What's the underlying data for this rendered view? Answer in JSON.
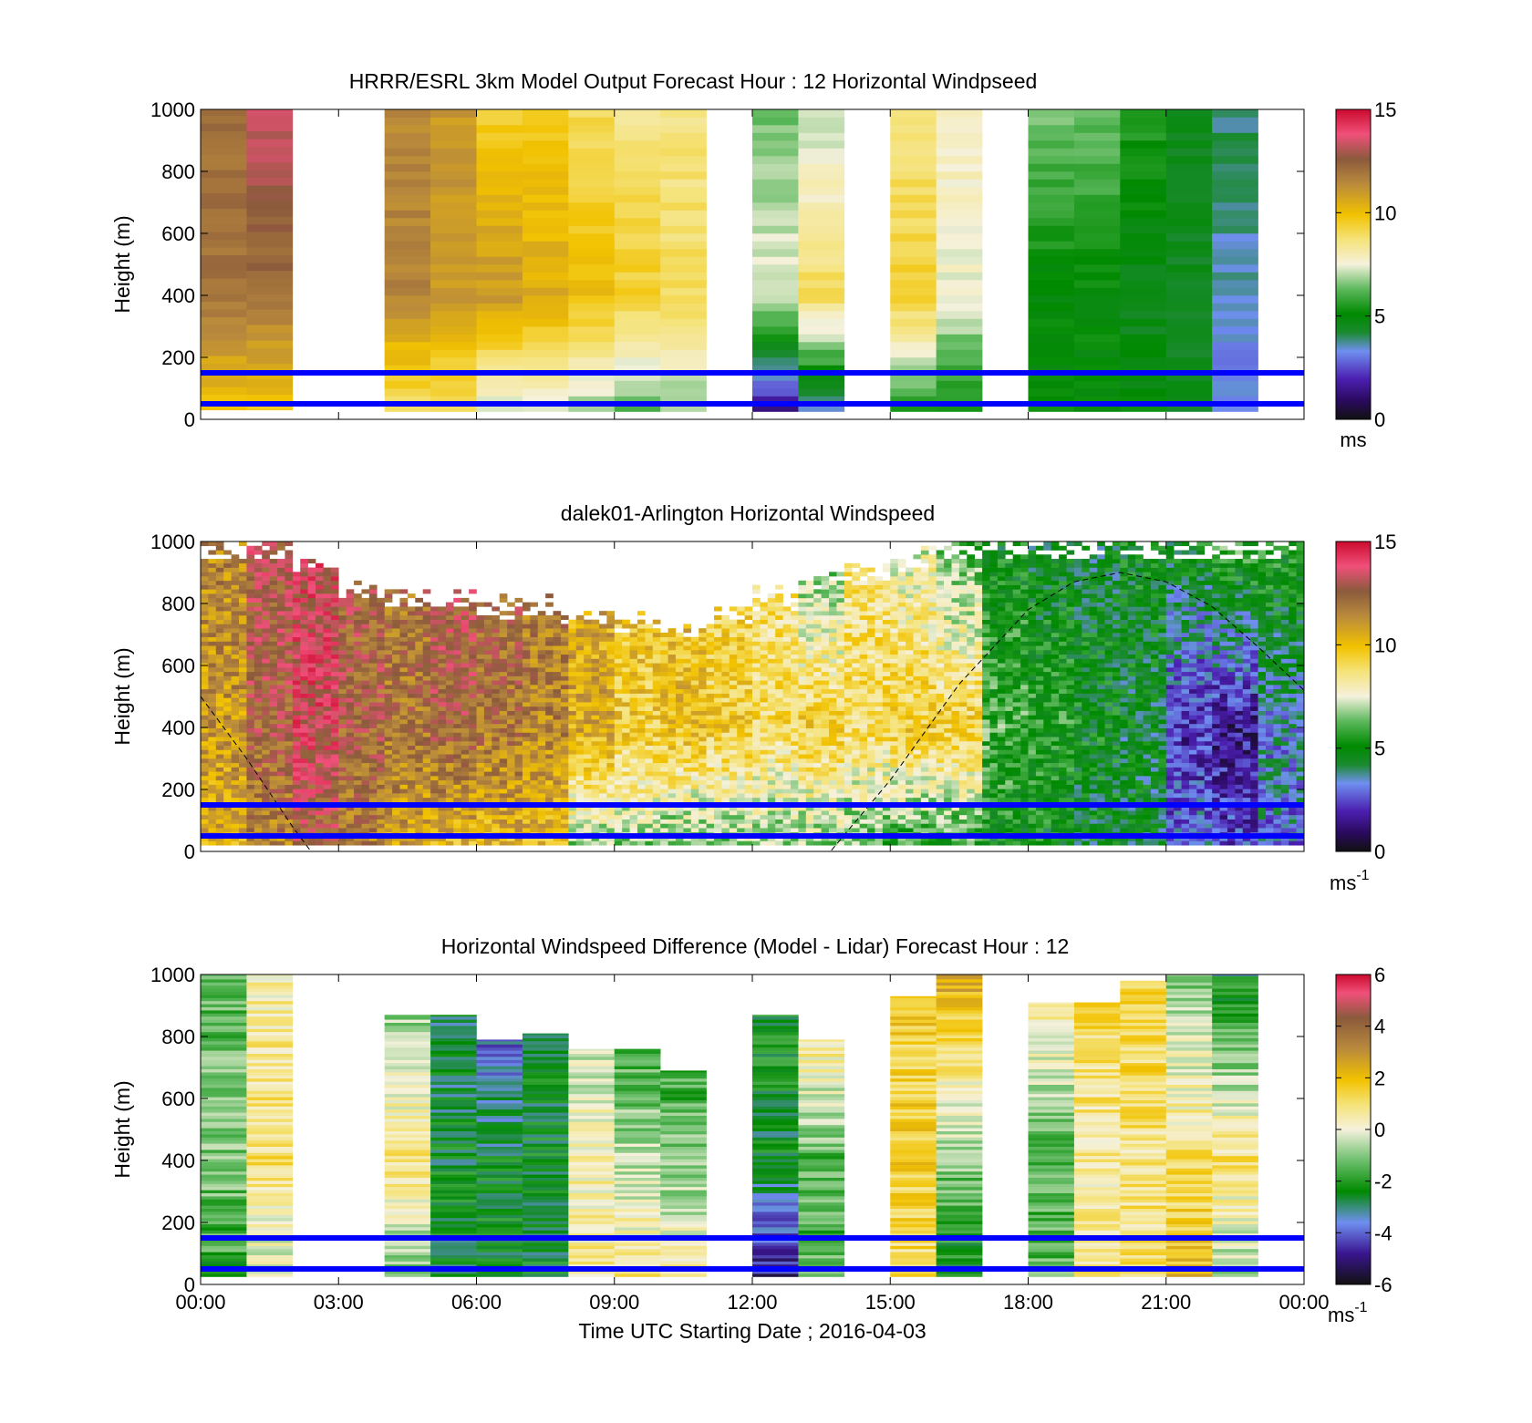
{
  "figure": {
    "xlabel": "Time UTC  Starting Date ; 2016-04-03",
    "x_ticks": [
      "00:00",
      "03:00",
      "06:00",
      "09:00",
      "12:00",
      "15:00",
      "18:00",
      "21:00",
      "00:00"
    ]
  },
  "colors": {
    "reference_lines": "#0000ff",
    "boundary_layer_curve": "#000000"
  },
  "chart_data": [
    {
      "type": "heatmap",
      "title": "HRRR/ESRL 3km Model Output   Forecast Hour : 12 Horizontal Windpseed",
      "ylabel": "Height (m)",
      "xlim_hours": [
        0,
        24
      ],
      "ylim": [
        0,
        1000
      ],
      "y_ticks": [
        "0",
        "200",
        "400",
        "600",
        "800",
        "1000"
      ],
      "reference_lines_m": [
        50,
        150
      ],
      "colorbar": {
        "min": 0,
        "max": 15,
        "ticks": [
          "0",
          "5",
          "10",
          "15"
        ],
        "unit": "ms"
      },
      "hourly_columns": [
        {
          "hour": 0,
          "bottom_m": 30,
          "low": 9.5,
          "mid": 12.0,
          "top": 12.0
        },
        {
          "hour": 1,
          "bottom_m": 30,
          "low": 9.5,
          "mid": 12.0,
          "top": 13.5
        },
        {
          "hour": 2,
          "missing": true
        },
        {
          "hour": 3,
          "missing": true
        },
        {
          "hour": 4,
          "bottom_m": 25,
          "low": 8.5,
          "mid": 11.5,
          "top": 11.5
        },
        {
          "hour": 5,
          "bottom_m": 25,
          "low": 8.5,
          "mid": 11.0,
          "top": 11.0
        },
        {
          "hour": 6,
          "bottom_m": 25,
          "low": 7.0,
          "mid": 11.0,
          "top": 9.5
        },
        {
          "hour": 7,
          "bottom_m": 25,
          "low": 7.0,
          "mid": 10.5,
          "top": 9.5
        },
        {
          "hour": 8,
          "bottom_m": 25,
          "low": 6.5,
          "mid": 10.0,
          "top": 9.0
        },
        {
          "hour": 9,
          "bottom_m": 25,
          "low": 6.0,
          "mid": 9.5,
          "top": 8.5
        },
        {
          "hour": 10,
          "bottom_m": 25,
          "low": 6.5,
          "mid": 9.0,
          "top": 8.5
        },
        {
          "hour": 11,
          "missing": true
        },
        {
          "hour": 12,
          "bottom_m": 25,
          "low": 1.0,
          "mid": 7.5,
          "top": 6.5
        },
        {
          "hour": 13,
          "bottom_m": 25,
          "low": 3.0,
          "mid": 9.0,
          "top": 7.0
        },
        {
          "hour": 14,
          "missing": true
        },
        {
          "hour": 15,
          "bottom_m": 25,
          "low": 5.0,
          "mid": 9.5,
          "top": 8.5
        },
        {
          "hour": 16,
          "bottom_m": 25,
          "low": 5.0,
          "mid": 7.5,
          "top": 8.0
        },
        {
          "hour": 17,
          "missing": true
        },
        {
          "hour": 18,
          "bottom_m": 25,
          "low": 5.0,
          "mid": 5.0,
          "top": 6.5
        },
        {
          "hour": 19,
          "bottom_m": 25,
          "low": 5.0,
          "mid": 5.0,
          "top": 6.5
        },
        {
          "hour": 20,
          "bottom_m": 25,
          "low": 5.0,
          "mid": 4.5,
          "top": 5.5
        },
        {
          "hour": 21,
          "bottom_m": 25,
          "low": 4.5,
          "mid": 4.5,
          "top": 4.5
        },
        {
          "hour": 22,
          "bottom_m": 25,
          "low": 3.0,
          "mid": 3.5,
          "top": 4.0
        },
        {
          "hour": 23,
          "missing": true
        }
      ]
    },
    {
      "type": "heatmap",
      "title": "dalek01-Arlington  Horizontal Windspeed",
      "ylabel": "Height (m)",
      "xlim_hours": [
        0,
        24
      ],
      "ylim": [
        0,
        1000
      ],
      "y_ticks": [
        "0",
        "200",
        "400",
        "600",
        "800",
        "1000"
      ],
      "reference_lines_m": [
        50,
        150
      ],
      "colorbar": {
        "min": 0,
        "max": 15,
        "ticks": [
          "0",
          "5",
          "10",
          "15"
        ],
        "unit": "ms",
        "unit_exponent": "-1"
      },
      "boundary_layer_curve_m": [
        [
          0,
          500
        ],
        [
          1,
          300
        ],
        [
          2,
          80
        ],
        [
          2.4,
          0
        ],
        [
          13.7,
          0
        ],
        [
          15,
          230
        ],
        [
          16.5,
          540
        ],
        [
          18,
          780
        ],
        [
          19,
          870
        ],
        [
          20,
          900
        ],
        [
          21,
          870
        ],
        [
          22,
          790
        ],
        [
          23,
          660
        ],
        [
          24,
          520
        ]
      ],
      "hourly_profiles": [
        {
          "hour": 0,
          "top_m": 1000,
          "low": 10.5,
          "mid": 11.0,
          "top": 11.5
        },
        {
          "hour": 1,
          "top_m": 1000,
          "low": 11.5,
          "mid": 12.5,
          "top": 13.0
        },
        {
          "hour": 2,
          "top_m": 960,
          "low": 12.5,
          "mid": 13.5,
          "top": 13.5
        },
        {
          "hour": 3,
          "top_m": 880,
          "low": 11.5,
          "mid": 12.5,
          "top": 12.5
        },
        {
          "hour": 4,
          "top_m": 850,
          "low": 10.5,
          "mid": 12.0,
          "top": 12.0
        },
        {
          "hour": 5,
          "top_m": 850,
          "low": 10.0,
          "mid": 12.5,
          "top": 13.0
        },
        {
          "hour": 6,
          "top_m": 830,
          "low": 10.0,
          "mid": 12.0,
          "top": 12.5
        },
        {
          "hour": 7,
          "top_m": 820,
          "low": 10.0,
          "mid": 11.5,
          "top": 12.0
        },
        {
          "hour": 8,
          "top_m": 800,
          "low": 6.5,
          "mid": 10.5,
          "top": 10.5
        },
        {
          "hour": 9,
          "top_m": 780,
          "low": 6.5,
          "mid": 9.5,
          "top": 10.0
        },
        {
          "hour": 10,
          "top_m": 760,
          "low": 6.0,
          "mid": 10.0,
          "top": 10.0
        },
        {
          "hour": 11,
          "top_m": 800,
          "low": 6.5,
          "mid": 9.5,
          "top": 9.0
        },
        {
          "hour": 12,
          "top_m": 850,
          "low": 6.5,
          "mid": 9.0,
          "top": 8.5
        },
        {
          "hour": 13,
          "top_m": 900,
          "low": 6.5,
          "mid": 9.5,
          "top": 6.0
        },
        {
          "hour": 14,
          "top_m": 950,
          "low": 6.0,
          "mid": 9.0,
          "top": 8.5
        },
        {
          "hour": 15,
          "top_m": 980,
          "low": 5.5,
          "mid": 9.5,
          "top": 7.5
        },
        {
          "hour": 16,
          "top_m": 1000,
          "low": 5.5,
          "mid": 9.5,
          "top": 6.0
        },
        {
          "hour": 17,
          "top_m": 1000,
          "low": 5.0,
          "mid": 6.0,
          "top": 5.0
        },
        {
          "hour": 18,
          "top_m": 1000,
          "low": 5.0,
          "mid": 5.5,
          "top": 4.5
        },
        {
          "hour": 19,
          "top_m": 1000,
          "low": 4.5,
          "mid": 5.0,
          "top": 4.5
        },
        {
          "hour": 20,
          "top_m": 1000,
          "low": 4.5,
          "mid": 4.5,
          "top": 5.0
        },
        {
          "hour": 21,
          "top_m": 1000,
          "low": 3.0,
          "mid": 2.0,
          "top": 5.0
        },
        {
          "hour": 22,
          "top_m": 1000,
          "low": 2.5,
          "mid": 1.5,
          "top": 6.0
        },
        {
          "hour": 23,
          "top_m": 1000,
          "low": 3.0,
          "mid": 3.5,
          "top": 5.5
        }
      ]
    },
    {
      "type": "heatmap",
      "title": "Horizontal Windspeed Difference (Model - Lidar) Forecast Hour : 12",
      "ylabel": "Height (m)",
      "xlim_hours": [
        0,
        24
      ],
      "ylim": [
        0,
        1000
      ],
      "y_ticks": [
        "0",
        "200",
        "400",
        "600",
        "800",
        "1000"
      ],
      "reference_lines_m": [
        50,
        150
      ],
      "colorbar": {
        "min": -6,
        "max": 6,
        "ticks": [
          "-6",
          "-4",
          "-2",
          "0",
          "2",
          "4",
          "6"
        ],
        "unit": "ms",
        "unit_exponent": "-1"
      },
      "hourly_columns": [
        {
          "hour": 0,
          "bottom_m": 25,
          "top_m": 1000,
          "low": -2.0,
          "mid": -1.0,
          "top": -1.5
        },
        {
          "hour": 1,
          "bottom_m": 25,
          "top_m": 1000,
          "low": -0.5,
          "mid": 1.0,
          "top": 0.5
        },
        {
          "hour": 2,
          "missing": true
        },
        {
          "hour": 3,
          "missing": true
        },
        {
          "hour": 4,
          "bottom_m": 25,
          "top_m": 870,
          "low": -1.5,
          "mid": 1.0,
          "top": -1.5
        },
        {
          "hour": 5,
          "bottom_m": 25,
          "top_m": 870,
          "low": -2.5,
          "mid": -2.5,
          "top": -3.0
        },
        {
          "hour": 6,
          "bottom_m": 25,
          "top_m": 790,
          "low": -2.5,
          "mid": -2.5,
          "top": -4.5
        },
        {
          "hour": 7,
          "bottom_m": 25,
          "top_m": 810,
          "low": -2.5,
          "mid": -2.5,
          "top": -2.5
        },
        {
          "hour": 8,
          "bottom_m": 25,
          "top_m": 760,
          "low": 0.5,
          "mid": 0.5,
          "top": -1.0
        },
        {
          "hour": 9,
          "bottom_m": 25,
          "top_m": 760,
          "low": 1.0,
          "mid": -0.5,
          "top": -2.5
        },
        {
          "hour": 10,
          "bottom_m": 25,
          "top_m": 690,
          "low": 0.5,
          "mid": -1.0,
          "top": -2.5
        },
        {
          "hour": 11,
          "missing": true
        },
        {
          "hour": 12,
          "bottom_m": 25,
          "top_m": 870,
          "low": -5.0,
          "mid": -2.5,
          "top": -2.0
        },
        {
          "hour": 13,
          "bottom_m": 25,
          "top_m": 790,
          "low": -1.5,
          "mid": -1.5,
          "top": 2.0
        },
        {
          "hour": 14,
          "missing": true
        },
        {
          "hour": 15,
          "bottom_m": 25,
          "top_m": 930,
          "low": 1.0,
          "mid": 1.5,
          "top": 1.5
        },
        {
          "hour": 16,
          "bottom_m": 25,
          "top_m": 1000,
          "low": -2.5,
          "mid": -1.0,
          "top": 2.5
        },
        {
          "hour": 17,
          "missing": true
        },
        {
          "hour": 18,
          "bottom_m": 25,
          "top_m": 910,
          "low": -1.5,
          "mid": -1.5,
          "top": 1.0
        },
        {
          "hour": 19,
          "bottom_m": 25,
          "top_m": 910,
          "low": 1.0,
          "mid": 0.5,
          "top": 1.5
        },
        {
          "hour": 20,
          "bottom_m": 25,
          "top_m": 980,
          "low": 1.0,
          "mid": 0.8,
          "top": 1.5
        },
        {
          "hour": 21,
          "bottom_m": 25,
          "top_m": 1000,
          "low": 2.0,
          "mid": 1.0,
          "top": -1.0
        },
        {
          "hour": 22,
          "bottom_m": 25,
          "top_m": 1000,
          "low": -1.0,
          "mid": 1.0,
          "top": -2.5
        },
        {
          "hour": 23,
          "missing": true
        }
      ]
    }
  ]
}
